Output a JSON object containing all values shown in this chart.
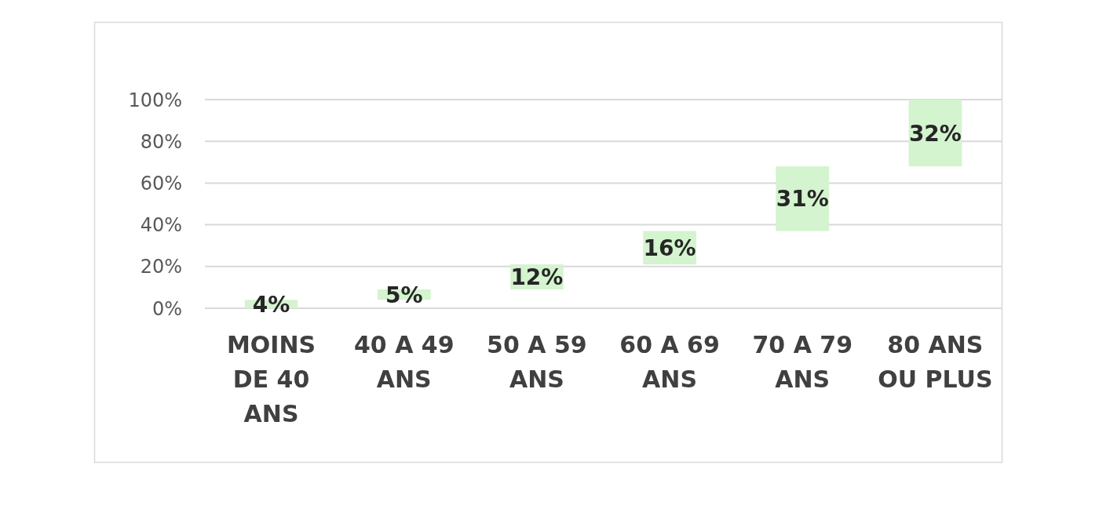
{
  "chart_data": {
    "type": "bar",
    "categories": [
      "MOINS DE 40 ANS",
      "40 A 49 ANS",
      "50 A 59 ANS",
      "60 A 69 ANS",
      "70 A 79 ANS",
      "80 ANS OU PLUS"
    ],
    "values": [
      4,
      5,
      12,
      16,
      31,
      32
    ],
    "base": [
      0,
      4,
      9,
      21,
      37,
      68
    ],
    "color": "#d4f3cf",
    "ylim": [
      0,
      100
    ],
    "yticks": [
      {
        "value": 0,
        "label": "0%"
      },
      {
        "value": 20,
        "label": "20%"
      },
      {
        "value": 40,
        "label": "40%"
      },
      {
        "value": 60,
        "label": "60%"
      },
      {
        "value": 80,
        "label": "80%"
      },
      {
        "value": 100,
        "label": "100%"
      }
    ],
    "grid": "y",
    "value_labels": [
      "4%",
      "5%",
      "12%",
      "16%",
      "31%",
      "32%"
    ]
  }
}
